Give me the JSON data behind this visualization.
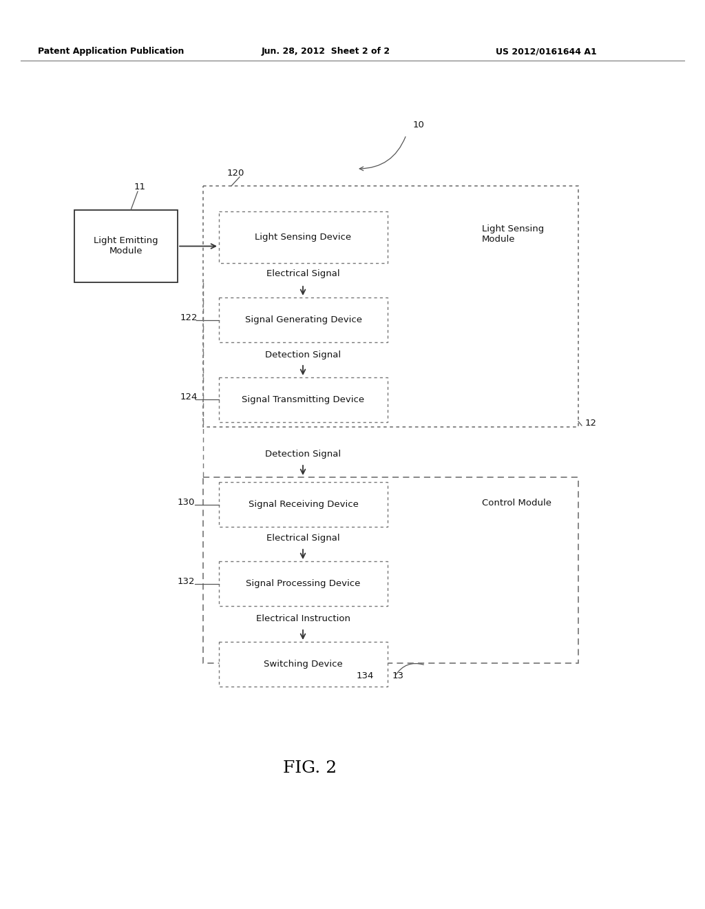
{
  "bg_color": "#ffffff",
  "header_left": "Patent Application Publication",
  "header_mid": "Jun. 28, 2012  Sheet 2 of 2",
  "header_right": "US 2012/0161644 A1",
  "fig_label": "FIG. 2",
  "label_10": "10",
  "label_11": "11",
  "label_12": "12",
  "label_13": "13",
  "label_120": "120",
  "label_122": "122",
  "label_124": "124",
  "label_130": "130",
  "label_132": "132",
  "label_134": "134",
  "box_light_emitting": "Light Emitting\nModule",
  "box_light_sensing": "Light Sensing Device",
  "box_signal_generating": "Signal Generating Device",
  "box_signal_transmitting": "Signal Transmitting Device",
  "box_signal_receiving": "Signal Receiving Device",
  "box_signal_processing": "Signal Processing Device",
  "box_switching": "Switching Device",
  "label_light_sensing_module": "Light Sensing\nModule",
  "label_control_module": "Control Module",
  "text_elec1": "Electrical Signal",
  "text_det1": "Detection Signal",
  "text_det2": "Detection Signal",
  "text_elec2": "Electrical Signal",
  "text_elec_instr": "Electrical Instruction"
}
